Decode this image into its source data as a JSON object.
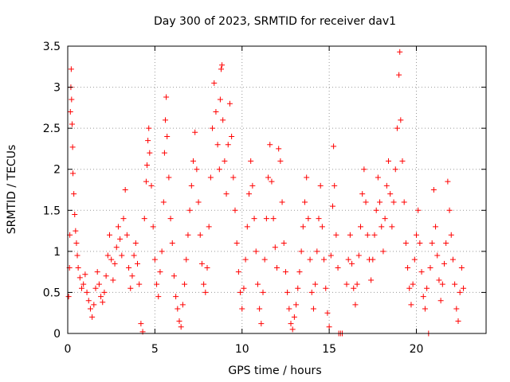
{
  "chart_data": {
    "type": "scatter",
    "title": "Day 300 of 2023, SRMTID for receiver dav1",
    "xlabel": "GPS time / hours",
    "ylabel": "SRMTID / TECUs",
    "xlim": [
      0,
      24
    ],
    "ylim": [
      0,
      3.5
    ],
    "x_ticks": [
      0,
      5,
      10,
      15,
      20
    ],
    "x_tick_labels": [
      "0",
      "5",
      "10",
      "15",
      "20"
    ],
    "y_ticks": [
      0,
      0.5,
      1,
      1.5,
      2,
      2.5,
      3,
      3.5
    ],
    "y_tick_labels": [
      "0",
      "0.5",
      "1",
      "1.5",
      "2",
      "2.5",
      "3",
      "3.5"
    ],
    "grid": true,
    "marker": "+",
    "series": [
      {
        "name": "SRMTID",
        "color": "#ff0000",
        "points": [
          [
            0.05,
            0.45
          ],
          [
            0.1,
            0.8
          ],
          [
            0.12,
            1.2
          ],
          [
            0.15,
            2.7
          ],
          [
            0.18,
            3.0
          ],
          [
            0.2,
            3.22
          ],
          [
            0.22,
            2.85
          ],
          [
            0.25,
            2.55
          ],
          [
            0.28,
            2.27
          ],
          [
            0.3,
            1.95
          ],
          [
            0.35,
            1.7
          ],
          [
            0.4,
            1.45
          ],
          [
            0.45,
            1.25
          ],
          [
            0.5,
            1.1
          ],
          [
            0.55,
            0.95
          ],
          [
            0.6,
            0.8
          ],
          [
            0.7,
            0.68
          ],
          [
            0.8,
            0.55
          ],
          [
            0.9,
            0.6
          ],
          [
            1.0,
            0.72
          ],
          [
            1.1,
            0.5
          ],
          [
            1.2,
            0.4
          ],
          [
            1.3,
            0.3
          ],
          [
            1.4,
            0.2
          ],
          [
            1.5,
            0.35
          ],
          [
            1.6,
            0.55
          ],
          [
            1.7,
            0.75
          ],
          [
            1.8,
            0.6
          ],
          [
            1.9,
            0.45
          ],
          [
            2.0,
            0.38
          ],
          [
            2.1,
            0.5
          ],
          [
            2.2,
            0.7
          ],
          [
            2.3,
            0.95
          ],
          [
            2.4,
            1.2
          ],
          [
            2.5,
            0.9
          ],
          [
            2.6,
            0.65
          ],
          [
            2.7,
            0.85
          ],
          [
            2.8,
            1.05
          ],
          [
            2.9,
            1.3
          ],
          [
            3.0,
            1.15
          ],
          [
            3.1,
            0.95
          ],
          [
            3.2,
            1.4
          ],
          [
            3.3,
            1.75
          ],
          [
            3.4,
            1.2
          ],
          [
            3.5,
            0.8
          ],
          [
            3.6,
            0.55
          ],
          [
            3.7,
            0.7
          ],
          [
            3.8,
            0.95
          ],
          [
            3.9,
            1.1
          ],
          [
            4.0,
            0.85
          ],
          [
            4.1,
            0.6
          ],
          [
            4.2,
            0.12
          ],
          [
            4.3,
            0.02
          ],
          [
            4.4,
            1.4
          ],
          [
            4.5,
            1.85
          ],
          [
            4.55,
            2.05
          ],
          [
            4.6,
            2.35
          ],
          [
            4.65,
            2.5
          ],
          [
            4.7,
            2.2
          ],
          [
            4.8,
            1.8
          ],
          [
            4.9,
            1.3
          ],
          [
            5.0,
            0.9
          ],
          [
            5.1,
            0.6
          ],
          [
            5.2,
            0.45
          ],
          [
            5.3,
            0.75
          ],
          [
            5.4,
            1.0
          ],
          [
            5.5,
            1.6
          ],
          [
            5.55,
            2.2
          ],
          [
            5.6,
            2.6
          ],
          [
            5.65,
            2.88
          ],
          [
            5.7,
            2.4
          ],
          [
            5.8,
            1.9
          ],
          [
            5.9,
            1.4
          ],
          [
            6.0,
            1.1
          ],
          [
            6.1,
            0.7
          ],
          [
            6.2,
            0.45
          ],
          [
            6.3,
            0.3
          ],
          [
            6.4,
            0.15
          ],
          [
            6.5,
            0.08
          ],
          [
            6.6,
            0.35
          ],
          [
            6.7,
            0.6
          ],
          [
            6.8,
            0.9
          ],
          [
            6.9,
            1.2
          ],
          [
            7.0,
            1.5
          ],
          [
            7.1,
            1.8
          ],
          [
            7.2,
            2.1
          ],
          [
            7.3,
            2.45
          ],
          [
            7.4,
            2.0
          ],
          [
            7.5,
            1.6
          ],
          [
            7.6,
            1.2
          ],
          [
            7.7,
            0.85
          ],
          [
            7.8,
            0.6
          ],
          [
            7.9,
            0.5
          ],
          [
            8.0,
            0.8
          ],
          [
            8.1,
            1.3
          ],
          [
            8.2,
            1.9
          ],
          [
            8.3,
            2.5
          ],
          [
            8.4,
            3.05
          ],
          [
            8.5,
            2.7
          ],
          [
            8.6,
            2.3
          ],
          [
            8.7,
            2.0
          ],
          [
            8.75,
            2.85
          ],
          [
            8.8,
            3.22
          ],
          [
            8.85,
            3.27
          ],
          [
            8.9,
            2.6
          ],
          [
            9.0,
            2.1
          ],
          [
            9.1,
            1.7
          ],
          [
            9.2,
            2.3
          ],
          [
            9.3,
            2.8
          ],
          [
            9.4,
            2.4
          ],
          [
            9.5,
            1.9
          ],
          [
            9.6,
            1.5
          ],
          [
            9.7,
            1.1
          ],
          [
            9.8,
            0.75
          ],
          [
            9.9,
            0.5
          ],
          [
            10.0,
            0.3
          ],
          [
            10.1,
            0.55
          ],
          [
            10.2,
            0.9
          ],
          [
            10.3,
            1.3
          ],
          [
            10.4,
            1.7
          ],
          [
            10.5,
            2.1
          ],
          [
            10.6,
            1.8
          ],
          [
            10.7,
            1.4
          ],
          [
            10.8,
            1.0
          ],
          [
            10.9,
            0.6
          ],
          [
            11.0,
            0.3
          ],
          [
            11.1,
            0.12
          ],
          [
            11.2,
            0.5
          ],
          [
            11.3,
            0.9
          ],
          [
            11.4,
            1.4
          ],
          [
            11.5,
            1.9
          ],
          [
            11.6,
            2.3
          ],
          [
            11.7,
            1.85
          ],
          [
            11.8,
            1.4
          ],
          [
            11.9,
            1.05
          ],
          [
            12.0,
            0.8
          ],
          [
            12.1,
            2.25
          ],
          [
            12.2,
            2.1
          ],
          [
            12.3,
            1.6
          ],
          [
            12.4,
            1.1
          ],
          [
            12.5,
            0.75
          ],
          [
            12.6,
            0.5
          ],
          [
            12.7,
            0.3
          ],
          [
            12.8,
            0.12
          ],
          [
            12.9,
            0.05
          ],
          [
            13.0,
            0.2
          ],
          [
            13.1,
            0.35
          ],
          [
            13.2,
            0.55
          ],
          [
            13.3,
            0.75
          ],
          [
            13.4,
            1.0
          ],
          [
            13.5,
            1.3
          ],
          [
            13.6,
            1.6
          ],
          [
            13.7,
            1.9
          ],
          [
            13.8,
            1.4
          ],
          [
            13.9,
            0.9
          ],
          [
            14.0,
            0.5
          ],
          [
            14.1,
            0.3
          ],
          [
            14.2,
            0.6
          ],
          [
            14.3,
            1.0
          ],
          [
            14.4,
            1.4
          ],
          [
            14.5,
            1.8
          ],
          [
            14.6,
            1.3
          ],
          [
            14.7,
            0.9
          ],
          [
            14.8,
            0.55
          ],
          [
            14.9,
            0.25
          ],
          [
            15.0,
            0.08
          ],
          [
            15.1,
            0.95
          ],
          [
            15.2,
            1.55
          ],
          [
            15.25,
            2.28
          ],
          [
            15.3,
            1.8
          ],
          [
            15.4,
            1.2
          ],
          [
            15.5,
            0.8
          ],
          [
            15.55,
            0.0
          ],
          [
            15.65,
            0.0
          ],
          [
            15.75,
            0.0
          ],
          [
            16.0,
            0.6
          ],
          [
            16.1,
            0.9
          ],
          [
            16.2,
            1.2
          ],
          [
            16.3,
            0.85
          ],
          [
            16.4,
            0.55
          ],
          [
            16.5,
            0.35
          ],
          [
            16.6,
            0.6
          ],
          [
            16.7,
            0.95
          ],
          [
            16.8,
            1.3
          ],
          [
            16.9,
            1.7
          ],
          [
            17.0,
            2.0
          ],
          [
            17.1,
            1.6
          ],
          [
            17.2,
            1.2
          ],
          [
            17.3,
            0.9
          ],
          [
            17.4,
            0.65
          ],
          [
            17.5,
            0.9
          ],
          [
            17.6,
            1.2
          ],
          [
            17.7,
            1.5
          ],
          [
            17.8,
            1.9
          ],
          [
            17.9,
            1.6
          ],
          [
            18.0,
            1.3
          ],
          [
            18.1,
            1.0
          ],
          [
            18.2,
            1.4
          ],
          [
            18.3,
            1.8
          ],
          [
            18.4,
            2.1
          ],
          [
            18.5,
            1.7
          ],
          [
            18.6,
            1.3
          ],
          [
            18.7,
            1.6
          ],
          [
            18.8,
            2.0
          ],
          [
            18.9,
            2.5
          ],
          [
            19.0,
            3.15
          ],
          [
            19.05,
            3.43
          ],
          [
            19.1,
            2.6
          ],
          [
            19.2,
            2.1
          ],
          [
            19.3,
            1.6
          ],
          [
            19.4,
            1.1
          ],
          [
            19.5,
            0.8
          ],
          [
            19.6,
            0.55
          ],
          [
            19.7,
            0.35
          ],
          [
            19.8,
            0.6
          ],
          [
            19.9,
            0.9
          ],
          [
            20.0,
            1.2
          ],
          [
            20.1,
            1.5
          ],
          [
            20.2,
            1.1
          ],
          [
            20.3,
            0.75
          ],
          [
            20.4,
            0.45
          ],
          [
            20.5,
            0.3
          ],
          [
            20.6,
            0.55
          ],
          [
            20.7,
            0.0
          ],
          [
            20.8,
            0.8
          ],
          [
            20.9,
            1.1
          ],
          [
            21.0,
            1.75
          ],
          [
            21.1,
            1.3
          ],
          [
            21.2,
            0.95
          ],
          [
            21.3,
            0.65
          ],
          [
            21.4,
            0.4
          ],
          [
            21.5,
            0.6
          ],
          [
            21.6,
            0.85
          ],
          [
            21.7,
            1.1
          ],
          [
            21.8,
            1.85
          ],
          [
            21.9,
            1.5
          ],
          [
            22.0,
            1.2
          ],
          [
            22.1,
            0.9
          ],
          [
            22.2,
            0.6
          ],
          [
            22.3,
            0.3
          ],
          [
            22.4,
            0.15
          ],
          [
            22.5,
            0.5
          ],
          [
            22.6,
            0.8
          ],
          [
            22.7,
            0.55
          ]
        ]
      }
    ]
  }
}
